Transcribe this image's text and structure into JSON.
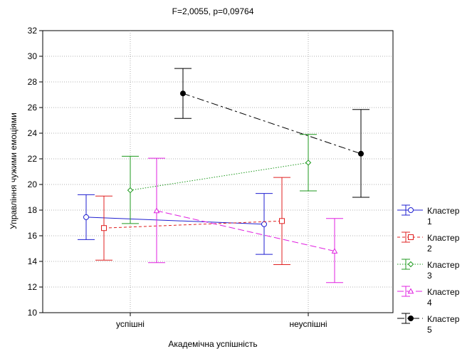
{
  "chart_data": {
    "type": "line",
    "title": "F=2,0055, p=0,09764",
    "xlabel": "Академічна успішність",
    "ylabel": "Управління чужими емоціями",
    "categories": [
      "успішні",
      "неуспішні"
    ],
    "ylim": [
      10,
      32
    ],
    "yticks": [
      10,
      12,
      14,
      16,
      18,
      20,
      22,
      24,
      26,
      28,
      30,
      32
    ],
    "grid": true,
    "legend_position": "right",
    "series": [
      {
        "name": "Кластер 1",
        "color": "#1f1fd0",
        "dash": "solid",
        "marker": "circle",
        "values": [
          17.45,
          16.9
        ],
        "lower": [
          15.7,
          14.55
        ],
        "upper": [
          19.2,
          19.3
        ]
      },
      {
        "name": "Кластер 2",
        "color": "#e02020",
        "dash": "dashed",
        "marker": "square",
        "values": [
          16.6,
          17.15
        ],
        "lower": [
          14.1,
          13.75
        ],
        "upper": [
          19.1,
          20.55
        ]
      },
      {
        "name": "Кластер 3",
        "color": "#1f9a1f",
        "dash": "dotted",
        "marker": "diamond",
        "values": [
          19.55,
          21.7
        ],
        "lower": [
          16.95,
          19.5
        ],
        "upper": [
          22.2,
          23.9
        ]
      },
      {
        "name": "Кластер 4",
        "color": "#e020e0",
        "dash": "longdash",
        "marker": "triangle",
        "values": [
          17.95,
          14.8
        ],
        "lower": [
          13.9,
          12.35
        ],
        "upper": [
          22.05,
          17.35
        ]
      },
      {
        "name": "Кластер 5",
        "color": "#000000",
        "dash": "dashdot",
        "marker": "filled-circle",
        "values": [
          27.1,
          22.4
        ],
        "lower": [
          25.15,
          19.0
        ],
        "upper": [
          29.05,
          25.85
        ]
      }
    ]
  }
}
